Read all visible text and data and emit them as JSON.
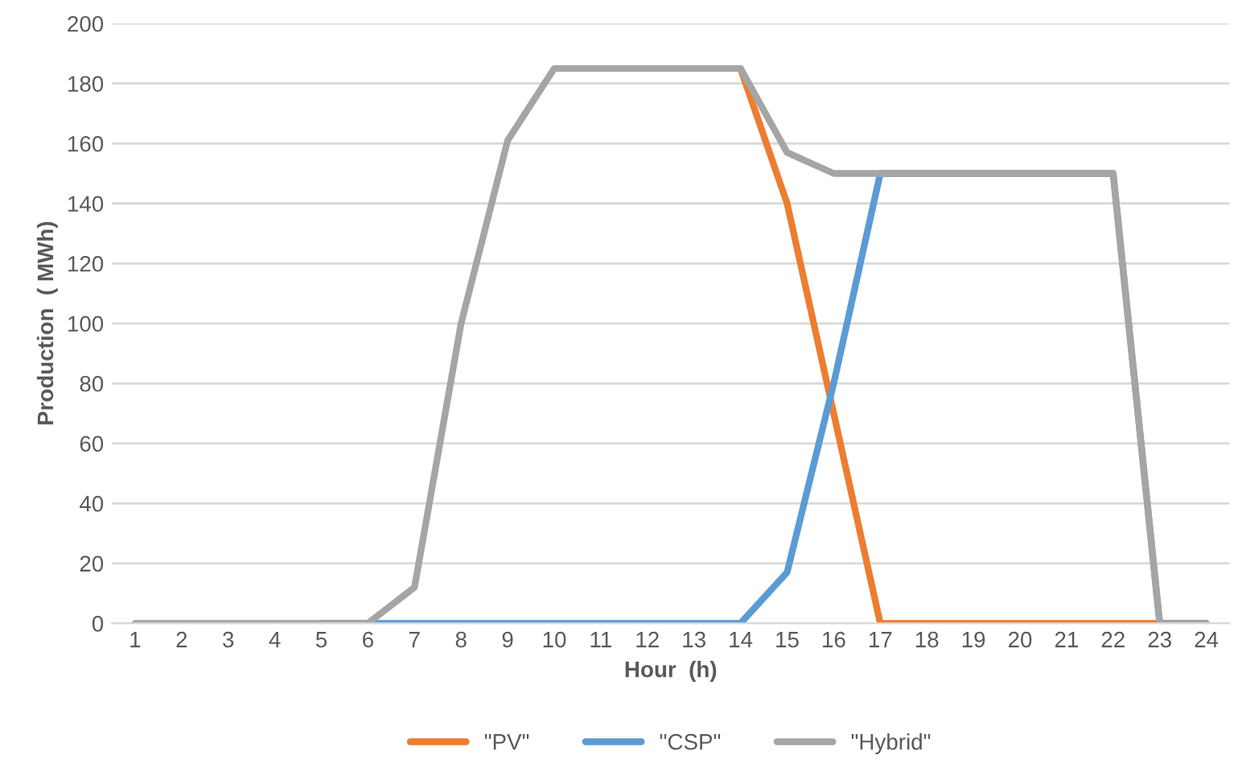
{
  "chart_data": {
    "type": "line",
    "xlabel": "Hour  (h)",
    "ylabel": "Production  ( MWh)",
    "categories": [
      "1",
      "2",
      "3",
      "4",
      "5",
      "6",
      "7",
      "8",
      "9",
      "10",
      "11",
      "12",
      "13",
      "14",
      "15",
      "16",
      "17",
      "18",
      "19",
      "20",
      "21",
      "22",
      "23",
      "24"
    ],
    "series": [
      {
        "name": "\"PV\"",
        "color": "#ed7d31",
        "values": [
          null,
          null,
          null,
          null,
          null,
          null,
          null,
          null,
          null,
          null,
          null,
          null,
          null,
          185,
          140,
          70,
          0,
          0,
          0,
          0,
          0,
          0,
          0,
          null
        ]
      },
      {
        "name": "\"CSP\"",
        "color": "#5b9bd5",
        "values": [
          null,
          null,
          null,
          null,
          0,
          0,
          0,
          0,
          0,
          0,
          0,
          0,
          0,
          0,
          17,
          80,
          150,
          150,
          150,
          150,
          150,
          150,
          0,
          0
        ]
      },
      {
        "name": "\"Hybrid\"",
        "color": "#a5a5a5",
        "values": [
          0,
          0,
          0,
          0,
          0,
          0,
          12,
          100,
          161,
          185,
          185,
          185,
          185,
          185,
          157,
          150,
          150,
          150,
          150,
          150,
          150,
          150,
          0,
          0
        ]
      }
    ],
    "ylim": [
      0,
      200
    ],
    "yticks": [
      0,
      20,
      40,
      60,
      80,
      100,
      120,
      140,
      160,
      180,
      200
    ],
    "grid": "y",
    "legend": "bottom",
    "line_style": "solid",
    "marker": "none"
  }
}
